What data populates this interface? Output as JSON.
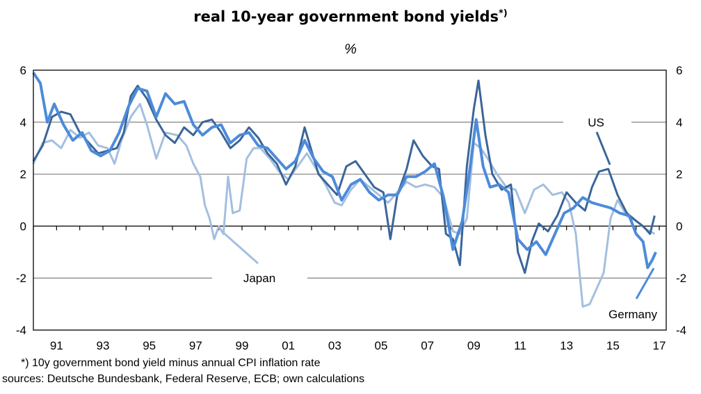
{
  "chart_data": {
    "type": "line",
    "title": "real 10-year government bond yields",
    "title_sup": "*)",
    "unit": "%",
    "ylim": [
      -4,
      6
    ],
    "yticks": [
      6,
      4,
      2,
      0,
      -2,
      -4
    ],
    "xlim": [
      1990.0,
      2017.3
    ],
    "xticks": [
      {
        "label": "91",
        "x": 1991
      },
      {
        "label": "93",
        "x": 1993
      },
      {
        "label": "95",
        "x": 1995
      },
      {
        "label": "97",
        "x": 1997
      },
      {
        "label": "99",
        "x": 1999
      },
      {
        "label": "01",
        "x": 2001
      },
      {
        "label": "03",
        "x": 2003
      },
      {
        "label": "05",
        "x": 2005
      },
      {
        "label": "07",
        "x": 2007
      },
      {
        "label": "09",
        "x": 2009
      },
      {
        "label": "11",
        "x": 2011
      },
      {
        "label": "13",
        "x": 2013
      },
      {
        "label": "15",
        "x": 2015
      },
      {
        "label": "17",
        "x": 2017
      }
    ],
    "series": [
      {
        "name": "Japan",
        "color": "#a3bfe0",
        "points": [
          [
            1990.0,
            2.4
          ],
          [
            1990.4,
            3.2
          ],
          [
            1990.8,
            3.3
          ],
          [
            1991.2,
            3.0
          ],
          [
            1991.6,
            3.7
          ],
          [
            1992.0,
            3.4
          ],
          [
            1992.4,
            3.6
          ],
          [
            1992.8,
            3.1
          ],
          [
            1993.2,
            3.0
          ],
          [
            1993.5,
            2.4
          ],
          [
            1993.8,
            3.3
          ],
          [
            1994.2,
            4.2
          ],
          [
            1994.6,
            4.7
          ],
          [
            1994.9,
            3.9
          ],
          [
            1995.3,
            2.6
          ],
          [
            1995.7,
            3.6
          ],
          [
            1996.2,
            3.5
          ],
          [
            1996.6,
            3.1
          ],
          [
            1996.9,
            2.4
          ],
          [
            1997.2,
            1.9
          ],
          [
            1997.4,
            0.8
          ],
          [
            1997.6,
            0.3
          ],
          [
            1997.8,
            -0.5
          ],
          [
            1998.0,
            0.0
          ],
          [
            1998.2,
            -0.3
          ],
          [
            1998.4,
            1.9
          ],
          [
            1998.6,
            0.5
          ],
          [
            1998.9,
            0.6
          ],
          [
            1999.2,
            2.6
          ],
          [
            1999.5,
            3.0
          ],
          [
            1999.8,
            3.0
          ],
          [
            2000.2,
            2.6
          ],
          [
            2000.6,
            2.1
          ],
          [
            2001.0,
            1.8
          ],
          [
            2001.4,
            2.3
          ],
          [
            2001.8,
            2.8
          ],
          [
            2002.2,
            2.2
          ],
          [
            2002.6,
            1.6
          ],
          [
            2003.0,
            0.9
          ],
          [
            2003.3,
            0.8
          ],
          [
            2003.7,
            1.4
          ],
          [
            2004.1,
            1.8
          ],
          [
            2004.5,
            1.5
          ],
          [
            2004.9,
            1.2
          ],
          [
            2005.3,
            0.9
          ],
          [
            2005.7,
            1.3
          ],
          [
            2006.1,
            1.7
          ],
          [
            2006.5,
            1.5
          ],
          [
            2006.9,
            1.6
          ],
          [
            2007.3,
            1.5
          ],
          [
            2007.7,
            1.1
          ],
          [
            2008.1,
            -0.2
          ],
          [
            2008.4,
            -0.3
          ],
          [
            2008.7,
            0.3
          ],
          [
            2009.0,
            3.2
          ],
          [
            2009.3,
            3.0
          ],
          [
            2009.6,
            2.6
          ],
          [
            2010.0,
            2.0
          ],
          [
            2010.4,
            1.5
          ],
          [
            2010.8,
            1.4
          ],
          [
            2011.2,
            0.5
          ],
          [
            2011.6,
            1.4
          ],
          [
            2012.0,
            1.6
          ],
          [
            2012.4,
            1.2
          ],
          [
            2012.8,
            1.3
          ],
          [
            2013.1,
            0.9
          ],
          [
            2013.4,
            -0.3
          ],
          [
            2013.7,
            -3.1
          ],
          [
            2014.0,
            -3.0
          ],
          [
            2014.3,
            -2.4
          ],
          [
            2014.6,
            -1.8
          ],
          [
            2014.9,
            0.3
          ],
          [
            2015.2,
            1.0
          ],
          [
            2015.6,
            0.4
          ],
          [
            2016.0,
            0.2
          ],
          [
            2016.4,
            -0.1
          ],
          [
            2016.8,
            -0.3
          ]
        ]
      },
      {
        "name": "US",
        "color": "#3a6599",
        "points": [
          [
            1990.0,
            2.5
          ],
          [
            1990.4,
            3.1
          ],
          [
            1990.8,
            4.2
          ],
          [
            1991.2,
            4.4
          ],
          [
            1991.6,
            4.3
          ],
          [
            1992.0,
            3.6
          ],
          [
            1992.4,
            3.2
          ],
          [
            1992.8,
            2.8
          ],
          [
            1993.2,
            2.9
          ],
          [
            1993.6,
            3.0
          ],
          [
            1993.9,
            3.6
          ],
          [
            1994.2,
            5.0
          ],
          [
            1994.5,
            5.4
          ],
          [
            1994.9,
            4.9
          ],
          [
            1995.3,
            4.1
          ],
          [
            1995.7,
            3.5
          ],
          [
            1996.1,
            3.2
          ],
          [
            1996.5,
            3.8
          ],
          [
            1996.9,
            3.5
          ],
          [
            1997.3,
            4.0
          ],
          [
            1997.7,
            4.1
          ],
          [
            1998.1,
            3.6
          ],
          [
            1998.5,
            3.0
          ],
          [
            1998.9,
            3.3
          ],
          [
            1999.3,
            3.8
          ],
          [
            1999.7,
            3.4
          ],
          [
            2000.1,
            2.8
          ],
          [
            2000.5,
            2.4
          ],
          [
            2000.9,
            1.6
          ],
          [
            2001.3,
            2.3
          ],
          [
            2001.7,
            3.8
          ],
          [
            2002.0,
            2.9
          ],
          [
            2002.3,
            2.0
          ],
          [
            2002.7,
            1.6
          ],
          [
            2003.1,
            1.2
          ],
          [
            2003.5,
            2.3
          ],
          [
            2003.9,
            2.5
          ],
          [
            2004.3,
            2.0
          ],
          [
            2004.7,
            1.5
          ],
          [
            2005.1,
            1.3
          ],
          [
            2005.4,
            -0.5
          ],
          [
            2005.7,
            1.2
          ],
          [
            2006.1,
            2.2
          ],
          [
            2006.4,
            3.3
          ],
          [
            2006.8,
            2.7
          ],
          [
            2007.2,
            2.3
          ],
          [
            2007.5,
            2.2
          ],
          [
            2007.8,
            -0.3
          ],
          [
            2008.1,
            -0.5
          ],
          [
            2008.4,
            -1.5
          ],
          [
            2008.7,
            2.3
          ],
          [
            2009.0,
            4.5
          ],
          [
            2009.2,
            5.6
          ],
          [
            2009.5,
            3.5
          ],
          [
            2009.8,
            2.0
          ],
          [
            2010.2,
            1.4
          ],
          [
            2010.6,
            1.6
          ],
          [
            2010.9,
            -1.0
          ],
          [
            2011.2,
            -1.8
          ],
          [
            2011.5,
            -0.6
          ],
          [
            2011.8,
            0.1
          ],
          [
            2012.2,
            -0.2
          ],
          [
            2012.6,
            0.4
          ],
          [
            2013.0,
            1.3
          ],
          [
            2013.4,
            0.9
          ],
          [
            2013.8,
            0.6
          ],
          [
            2014.1,
            1.5
          ],
          [
            2014.4,
            2.1
          ],
          [
            2014.8,
            2.2
          ],
          [
            2015.2,
            1.2
          ],
          [
            2015.6,
            0.5
          ],
          [
            2016.0,
            0.2
          ],
          [
            2016.3,
            0.0
          ],
          [
            2016.6,
            -0.3
          ],
          [
            2016.8,
            0.4
          ]
        ]
      },
      {
        "name": "Germany",
        "color": "#4d8bd9",
        "points": [
          [
            1990.0,
            5.9
          ],
          [
            1990.3,
            5.5
          ],
          [
            1990.6,
            4.0
          ],
          [
            1990.9,
            4.7
          ],
          [
            1991.3,
            3.9
          ],
          [
            1991.7,
            3.3
          ],
          [
            1992.1,
            3.6
          ],
          [
            1992.5,
            2.9
          ],
          [
            1992.9,
            2.7
          ],
          [
            1993.3,
            2.9
          ],
          [
            1993.7,
            3.6
          ],
          [
            1994.1,
            4.6
          ],
          [
            1994.5,
            5.3
          ],
          [
            1994.9,
            5.2
          ],
          [
            1995.3,
            4.2
          ],
          [
            1995.7,
            5.1
          ],
          [
            1996.1,
            4.7
          ],
          [
            1996.5,
            4.8
          ],
          [
            1996.9,
            3.9
          ],
          [
            1997.3,
            3.5
          ],
          [
            1997.7,
            3.8
          ],
          [
            1998.1,
            3.9
          ],
          [
            1998.5,
            3.2
          ],
          [
            1998.9,
            3.5
          ],
          [
            1999.3,
            3.6
          ],
          [
            1999.7,
            3.1
          ],
          [
            2000.1,
            3.0
          ],
          [
            2000.5,
            2.6
          ],
          [
            2000.9,
            2.2
          ],
          [
            2001.3,
            2.5
          ],
          [
            2001.7,
            3.3
          ],
          [
            2002.1,
            2.6
          ],
          [
            2002.5,
            2.1
          ],
          [
            2002.9,
            1.9
          ],
          [
            2003.3,
            1.0
          ],
          [
            2003.7,
            1.6
          ],
          [
            2004.1,
            1.8
          ],
          [
            2004.5,
            1.3
          ],
          [
            2004.9,
            1.0
          ],
          [
            2005.3,
            1.2
          ],
          [
            2005.7,
            1.2
          ],
          [
            2006.1,
            1.9
          ],
          [
            2006.5,
            1.9
          ],
          [
            2006.9,
            2.1
          ],
          [
            2007.3,
            2.4
          ],
          [
            2007.7,
            1.1
          ],
          [
            2008.1,
            -0.9
          ],
          [
            2008.5,
            0.2
          ],
          [
            2008.8,
            2.0
          ],
          [
            2009.1,
            4.1
          ],
          [
            2009.4,
            2.3
          ],
          [
            2009.7,
            1.5
          ],
          [
            2010.1,
            1.6
          ],
          [
            2010.5,
            1.3
          ],
          [
            2010.9,
            -0.5
          ],
          [
            2011.3,
            -0.9
          ],
          [
            2011.7,
            -0.6
          ],
          [
            2012.1,
            -1.1
          ],
          [
            2012.5,
            -0.3
          ],
          [
            2012.9,
            0.5
          ],
          [
            2013.3,
            0.7
          ],
          [
            2013.7,
            1.1
          ],
          [
            2014.1,
            0.9
          ],
          [
            2014.5,
            0.8
          ],
          [
            2014.9,
            0.7
          ],
          [
            2015.3,
            0.5
          ],
          [
            2015.7,
            0.4
          ],
          [
            2016.0,
            -0.3
          ],
          [
            2016.3,
            -0.6
          ],
          [
            2016.5,
            -1.6
          ],
          [
            2016.7,
            -1.3
          ],
          [
            2016.85,
            -1.0
          ]
        ]
      }
    ],
    "labels": {
      "us": "US",
      "japan": "Japan",
      "germany": "Germany"
    },
    "grid": "horizontal",
    "legend": "inline labels"
  },
  "footnote": "*) 10y government bond yield minus annual CPI inflation rate",
  "sources": "sources: Deutsche Bundesbank, Federal Reserve, ECB; own calculations"
}
